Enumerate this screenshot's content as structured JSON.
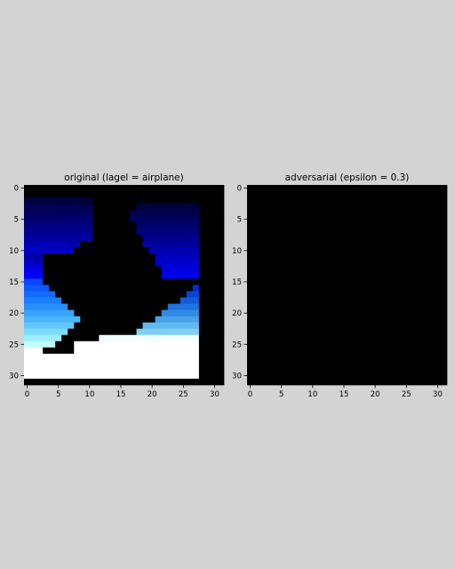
{
  "chart_data": [
    {
      "type": "heatmap",
      "title": "original (lagel = airplane)",
      "xlim": [
        -0.5,
        31.5
      ],
      "ylim": [
        31.5,
        -0.5
      ],
      "xticks": [
        "0",
        "5",
        "10",
        "15",
        "20",
        "25",
        "30"
      ],
      "yticks": [
        "0",
        "5",
        "10",
        "15",
        "20",
        "25",
        "30"
      ],
      "grid": false,
      "image_description_values": {
        "background": "#000000",
        "rows": 32,
        "cols": 32,
        "content_cols": [
          0,
          27
        ],
        "blue_band_top_rows": [
          2,
          12
        ],
        "white_region_rows": [
          25,
          30
        ]
      }
    },
    {
      "type": "heatmap",
      "title": "adversarial (epsilon = 0.3)",
      "xlim": [
        -0.5,
        31.5
      ],
      "ylim": [
        31.5,
        -0.5
      ],
      "xticks": [
        "0",
        "5",
        "10",
        "15",
        "20",
        "25",
        "30"
      ],
      "yticks": [
        "0",
        "5",
        "10",
        "15",
        "20",
        "25",
        "30"
      ],
      "grid": false,
      "fill": "#000000"
    }
  ],
  "colors": {
    "figure_bg": "#d3d3d3",
    "black": "#000000",
    "white": "#ffffff"
  }
}
